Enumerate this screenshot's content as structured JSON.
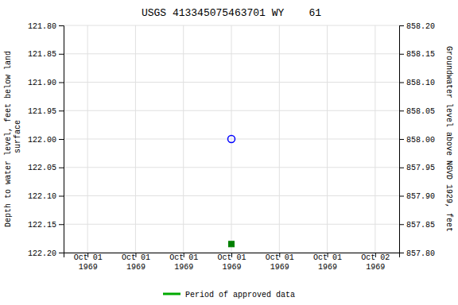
{
  "chart_data": {
    "type": "scatter",
    "title": "USGS 413345075463701 WY    61",
    "ylabel": "Depth to water level, feet below land\n surface",
    "y2label": "Groundwater level above NGVD 1929, feet",
    "categories": [
      "Oct 01\n1969",
      "Oct 01\n1969",
      "Oct 01\n1969",
      "Oct 01\n1969",
      "Oct 01\n1969",
      "Oct 01\n1969",
      "Oct 02\n1969"
    ],
    "series": [
      {
        "color": "blue",
        "marker": "open-circle",
        "values": [
          null,
          null,
          null,
          122.0,
          null,
          null,
          null
        ]
      },
      {
        "color": "green",
        "marker": "square",
        "values": [
          null,
          null,
          null,
          122.185,
          null,
          null,
          null
        ]
      },
      {
        "name": "Period of approved data",
        "type": "line",
        "color": "#00aa00",
        "values": [
          null,
          null,
          null,
          null,
          null,
          null,
          null
        ]
      }
    ],
    "ylim": [
      122.2,
      121.8
    ],
    "yticks": [
      {
        "value": 121.8,
        "label": "121.80"
      },
      {
        "value": 121.85,
        "label": "121.85"
      },
      {
        "value": 121.9,
        "label": "121.90"
      },
      {
        "value": 121.95,
        "label": "121.95"
      },
      {
        "value": 122.0,
        "label": "122.00"
      },
      {
        "value": 122.05,
        "label": "122.05"
      },
      {
        "value": 122.1,
        "label": "122.10"
      },
      {
        "value": 122.15,
        "label": "122.15"
      },
      {
        "value": 122.2,
        "label": "122.20"
      }
    ],
    "y2lim": [
      857.8,
      858.2
    ],
    "y2ticks": [
      {
        "value": 858.2,
        "label": "858.20"
      },
      {
        "value": 858.15,
        "label": "858.15"
      },
      {
        "value": 858.1,
        "label": "858.10"
      },
      {
        "value": 858.05,
        "label": "858.05"
      },
      {
        "value": 858.0,
        "label": "858.00"
      },
      {
        "value": 857.95,
        "label": "857.95"
      },
      {
        "value": 857.9,
        "label": "857.90"
      },
      {
        "value": 857.85,
        "label": "857.85"
      },
      {
        "value": 857.8,
        "label": "857.80"
      }
    ],
    "grid": true,
    "legend": "bottom"
  }
}
